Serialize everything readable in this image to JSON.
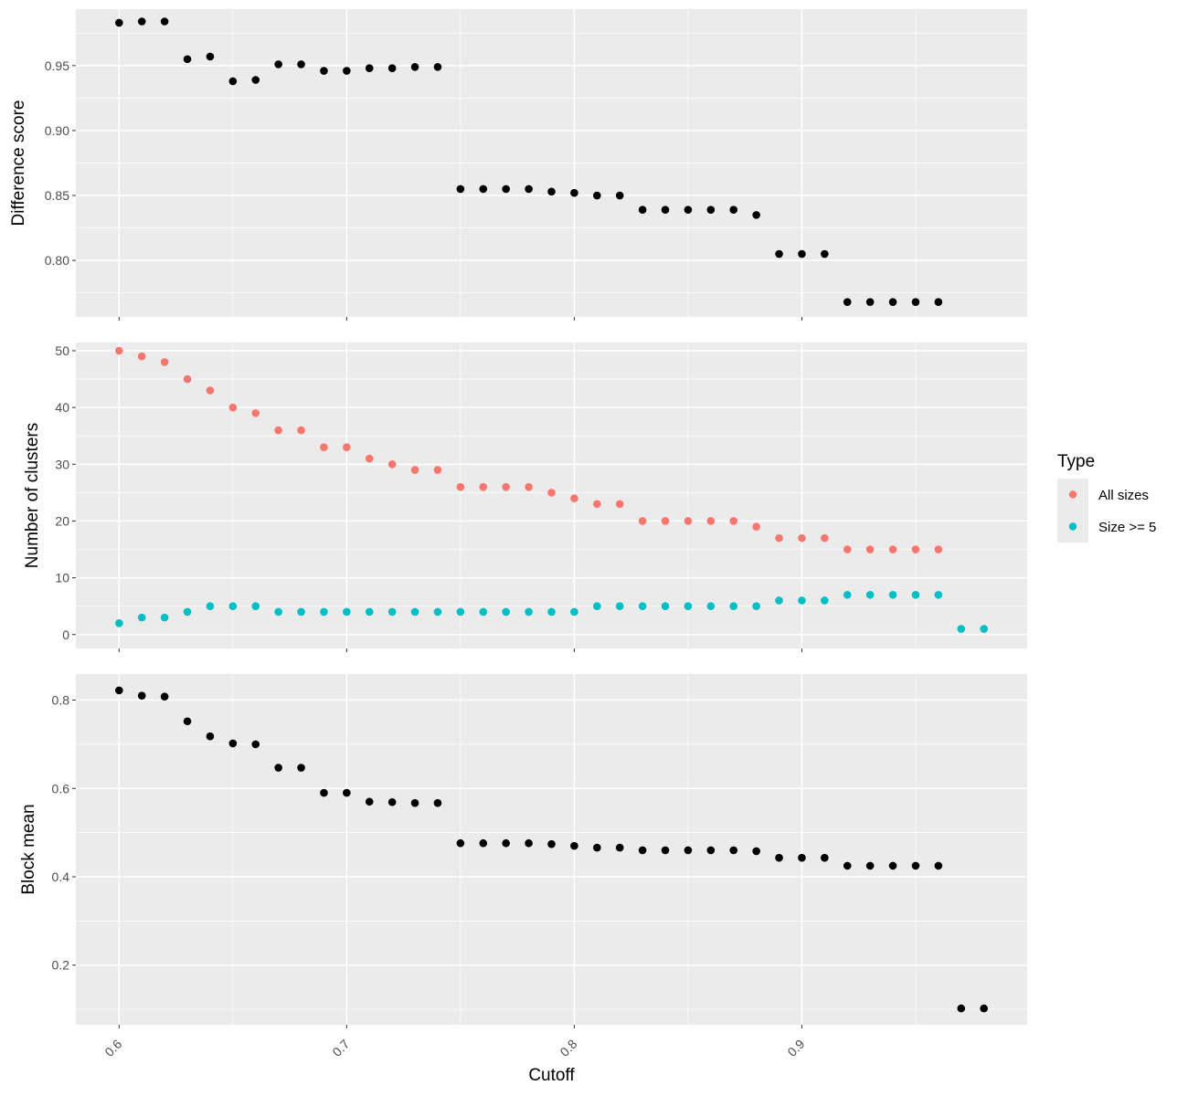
{
  "chart_data": [
    {
      "type": "scatter",
      "panel": "top",
      "ylabel": "Difference score",
      "xlabel": "",
      "xlim": [
        0.581,
        0.999
      ],
      "ylim": [
        0.7565,
        0.9935
      ],
      "y_ticks": [
        0.8,
        0.85,
        0.9,
        0.95
      ],
      "y_tick_labels": [
        "0.80",
        "0.85",
        "0.90",
        "0.95"
      ],
      "grid": true,
      "series": [
        {
          "color": "#000000",
          "x": [
            0.6,
            0.61,
            0.62,
            0.63,
            0.64,
            0.65,
            0.66,
            0.67,
            0.68,
            0.69,
            0.7,
            0.71,
            0.72,
            0.73,
            0.74,
            0.75,
            0.76,
            0.77,
            0.78,
            0.79,
            0.8,
            0.81,
            0.82,
            0.83,
            0.84,
            0.85,
            0.86,
            0.87,
            0.88,
            0.89,
            0.9,
            0.91,
            0.92,
            0.93,
            0.94,
            0.95,
            0.96
          ],
          "values": [
            0.983,
            0.984,
            0.984,
            0.955,
            0.957,
            0.938,
            0.939,
            0.951,
            0.951,
            0.946,
            0.946,
            0.948,
            0.948,
            0.949,
            0.949,
            0.855,
            0.855,
            0.855,
            0.855,
            0.853,
            0.852,
            0.85,
            0.85,
            0.839,
            0.839,
            0.839,
            0.839,
            0.839,
            0.835,
            0.805,
            0.805,
            0.805,
            0.768,
            0.768,
            0.768,
            0.768,
            0.768
          ]
        }
      ]
    },
    {
      "type": "scatter",
      "panel": "middle",
      "ylabel": "Number of clusters",
      "xlabel": "",
      "xlim": [
        0.581,
        0.999
      ],
      "ylim": [
        -2.45,
        51.45
      ],
      "y_ticks": [
        0,
        10,
        20,
        30,
        40,
        50
      ],
      "y_tick_labels": [
        "0",
        "10",
        "20",
        "30",
        "40",
        "50"
      ],
      "grid": true,
      "series": [
        {
          "name": "All sizes",
          "color": "#F8766D",
          "x": [
            0.6,
            0.61,
            0.62,
            0.63,
            0.64,
            0.65,
            0.66,
            0.67,
            0.68,
            0.69,
            0.7,
            0.71,
            0.72,
            0.73,
            0.74,
            0.75,
            0.76,
            0.77,
            0.78,
            0.79,
            0.8,
            0.81,
            0.82,
            0.83,
            0.84,
            0.85,
            0.86,
            0.87,
            0.88,
            0.89,
            0.9,
            0.91,
            0.92,
            0.93,
            0.94,
            0.95,
            0.96
          ],
          "values": [
            50,
            49,
            48,
            45,
            43,
            40,
            39,
            36,
            36,
            33,
            33,
            31,
            30,
            29,
            29,
            26,
            26,
            26,
            26,
            25,
            24,
            23,
            23,
            20,
            20,
            20,
            20,
            20,
            19,
            17,
            17,
            17,
            15,
            15,
            15,
            15,
            15
          ]
        },
        {
          "name": "Size >= 5",
          "color": "#00BFC4",
          "x": [
            0.6,
            0.61,
            0.62,
            0.63,
            0.64,
            0.65,
            0.66,
            0.67,
            0.68,
            0.69,
            0.7,
            0.71,
            0.72,
            0.73,
            0.74,
            0.75,
            0.76,
            0.77,
            0.78,
            0.79,
            0.8,
            0.81,
            0.82,
            0.83,
            0.84,
            0.85,
            0.86,
            0.87,
            0.88,
            0.89,
            0.9,
            0.91,
            0.92,
            0.93,
            0.94,
            0.95,
            0.96,
            0.97,
            0.98
          ],
          "values": [
            2,
            3,
            3,
            4,
            5,
            5,
            5,
            4,
            4,
            4,
            4,
            4,
            4,
            4,
            4,
            4,
            4,
            4,
            4,
            4,
            4,
            5,
            5,
            5,
            5,
            5,
            5,
            5,
            5,
            6,
            6,
            6,
            7,
            7,
            7,
            7,
            7,
            1,
            1
          ]
        }
      ],
      "legend": {
        "title": "Type",
        "position": "right",
        "entries": [
          "All sizes",
          "Size >= 5"
        ]
      }
    },
    {
      "type": "scatter",
      "panel": "bottom",
      "ylabel": "Block mean",
      "xlabel": "Cutoff",
      "xlim": [
        0.581,
        0.999
      ],
      "ylim": [
        0.065,
        0.859
      ],
      "y_ticks": [
        0.2,
        0.4,
        0.6,
        0.8
      ],
      "y_tick_labels": [
        "0.2",
        "0.4",
        "0.6",
        "0.8"
      ],
      "x_ticks": [
        0.6,
        0.7,
        0.8,
        0.9
      ],
      "x_tick_labels": [
        "0.6",
        "0.7",
        "0.8",
        "0.9"
      ],
      "grid": true,
      "series": [
        {
          "color": "#000000",
          "x": [
            0.6,
            0.61,
            0.62,
            0.63,
            0.64,
            0.65,
            0.66,
            0.67,
            0.68,
            0.69,
            0.7,
            0.71,
            0.72,
            0.73,
            0.74,
            0.75,
            0.76,
            0.77,
            0.78,
            0.79,
            0.8,
            0.81,
            0.82,
            0.83,
            0.84,
            0.85,
            0.86,
            0.87,
            0.88,
            0.89,
            0.9,
            0.91,
            0.92,
            0.93,
            0.94,
            0.95,
            0.96,
            0.97,
            0.98
          ],
          "values": [
            0.822,
            0.81,
            0.808,
            0.752,
            0.718,
            0.702,
            0.7,
            0.647,
            0.647,
            0.59,
            0.59,
            0.57,
            0.569,
            0.567,
            0.567,
            0.476,
            0.476,
            0.476,
            0.476,
            0.474,
            0.47,
            0.466,
            0.466,
            0.46,
            0.46,
            0.46,
            0.46,
            0.46,
            0.458,
            0.443,
            0.443,
            0.443,
            0.425,
            0.425,
            0.425,
            0.425,
            0.425,
            0.102,
            0.102
          ]
        }
      ]
    }
  ]
}
